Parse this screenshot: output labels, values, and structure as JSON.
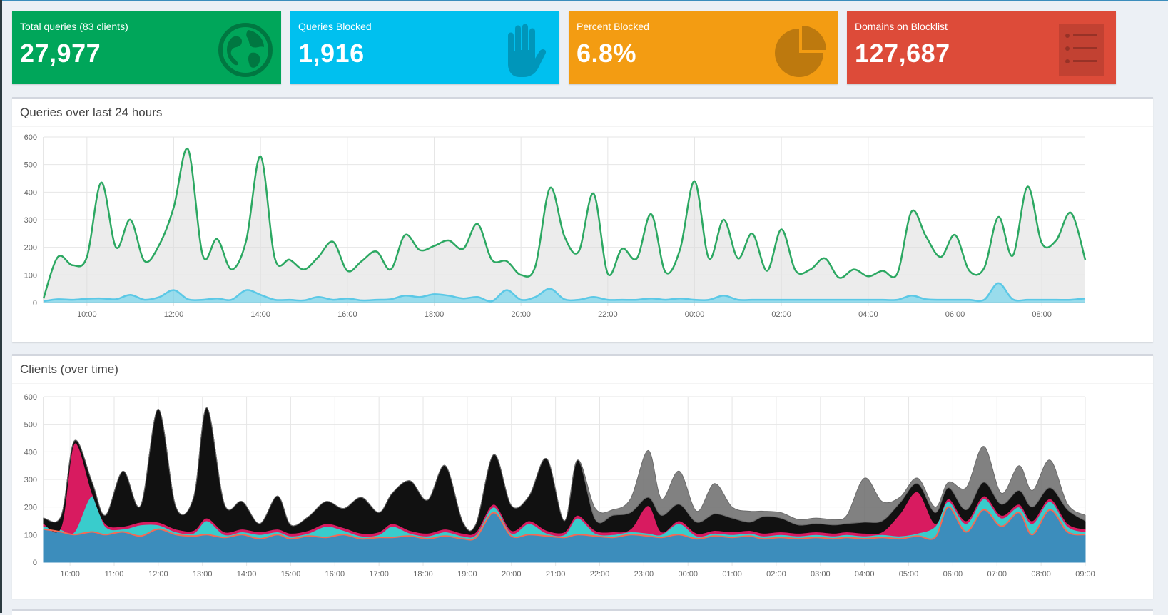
{
  "stats": {
    "total": {
      "label": "Total queries (83 clients)",
      "value": "27,977",
      "color": "#00a65a",
      "icon": "globe-icon"
    },
    "blocked": {
      "label": "Queries Blocked",
      "value": "1,916",
      "color": "#00c0ef",
      "icon": "hand-icon"
    },
    "percent": {
      "label": "Percent Blocked",
      "value": "6.8%",
      "color": "#f39c12",
      "icon": "pie-chart-icon"
    },
    "domains": {
      "label": "Domains on Blocklist",
      "value": "127,687",
      "color": "#dd4b39",
      "icon": "list-icon"
    }
  },
  "queries_panel": {
    "title": "Queries over last 24 hours"
  },
  "clients_panel": {
    "title": "Clients (over time)"
  },
  "chart_data": [
    {
      "type": "area",
      "y_ticks": [
        "0",
        "100",
        "200",
        "300",
        "400",
        "500",
        "600"
      ],
      "x_ticks": [
        "10:00",
        "12:00",
        "14:00",
        "16:00",
        "18:00",
        "20:00",
        "22:00",
        "00:00",
        "02:00",
        "04:00",
        "06:00",
        "08:00"
      ],
      "ylim": [
        0,
        600
      ],
      "grid": true,
      "x": [
        9.0,
        9.33,
        9.67,
        10.0,
        10.33,
        10.67,
        11.0,
        11.33,
        11.67,
        12.0,
        12.33,
        12.67,
        13.0,
        13.33,
        13.67,
        14.0,
        14.33,
        14.67,
        15.0,
        15.33,
        15.67,
        16.0,
        16.33,
        16.67,
        17.0,
        17.33,
        17.67,
        18.0,
        18.33,
        18.67,
        19.0,
        19.33,
        19.67,
        20.0,
        20.33,
        20.67,
        21.0,
        21.33,
        21.67,
        22.0,
        22.33,
        22.67,
        23.0,
        23.33,
        23.67,
        24.0,
        24.33,
        24.67,
        25.0,
        25.33,
        25.67,
        26.0,
        26.33,
        26.67,
        27.0,
        27.33,
        27.67,
        28.0,
        28.33,
        28.67,
        29.0,
        29.33,
        29.67,
        30.0,
        30.33,
        30.67,
        31.0,
        31.33,
        31.67,
        32.0,
        32.33,
        32.67,
        33.0
      ],
      "series": [
        {
          "values": [
            15,
            165,
            135,
            165,
            435,
            200,
            300,
            150,
            210,
            345,
            555,
            170,
            230,
            120,
            225,
            530,
            160,
            155,
            120,
            165,
            220,
            115,
            150,
            185,
            120,
            245,
            190,
            205,
            225,
            195,
            285,
            155,
            150,
            100,
            130,
            415,
            240,
            185,
            395,
            105,
            195,
            160,
            320,
            110,
            195,
            440,
            160,
            300,
            160,
            250,
            115,
            265,
            115,
            120,
            160,
            90,
            120,
            95,
            115,
            105,
            330,
            240,
            165,
            245,
            115,
            125,
            310,
            170,
            420,
            215,
            225,
            325,
            155
          ],
          "color": "#00a65a"
        },
        {
          "values": [
            5,
            12,
            10,
            14,
            15,
            12,
            28,
            10,
            20,
            45,
            12,
            10,
            15,
            10,
            45,
            28,
            10,
            10,
            8,
            20,
            10,
            15,
            8,
            10,
            12,
            25,
            20,
            30,
            25,
            15,
            20,
            5,
            45,
            10,
            20,
            50,
            12,
            10,
            20,
            10,
            10,
            10,
            15,
            10,
            15,
            10,
            10,
            25,
            10,
            10,
            10,
            10,
            10,
            10,
            10,
            10,
            10,
            10,
            10,
            10,
            25,
            12,
            10,
            10,
            10,
            10,
            70,
            12,
            10,
            10,
            10,
            10,
            15
          ],
          "color": "#00c0ef"
        }
      ]
    },
    {
      "type": "area",
      "stacked": true,
      "y_ticks": [
        "0",
        "100",
        "200",
        "300",
        "400",
        "500",
        "600"
      ],
      "x_ticks": [
        "10:00",
        "11:00",
        "12:00",
        "13:00",
        "14:00",
        "15:00",
        "16:00",
        "17:00",
        "18:00",
        "19:00",
        "20:00",
        "21:00",
        "22:00",
        "23:00",
        "00:00",
        "01:00",
        "02:00",
        "03:00",
        "04:00",
        "05:00",
        "06:00",
        "07:00",
        "08:00",
        "09:00"
      ],
      "ylim": [
        0,
        600
      ],
      "grid": true,
      "x": [
        9.4,
        9.8,
        10.1,
        10.5,
        10.8,
        11.2,
        11.6,
        12.0,
        12.4,
        12.8,
        13.1,
        13.5,
        13.9,
        14.3,
        14.7,
        15.0,
        15.4,
        15.8,
        16.2,
        16.6,
        17.0,
        17.3,
        17.7,
        18.1,
        18.5,
        18.9,
        19.2,
        19.6,
        20.0,
        20.4,
        20.8,
        21.2,
        21.5,
        21.9,
        22.3,
        22.7,
        23.1,
        23.4,
        23.8,
        24.2,
        24.6,
        25.0,
        25.4,
        25.7,
        26.1,
        26.5,
        26.9,
        27.3,
        27.6,
        28.0,
        28.4,
        28.8,
        29.2,
        29.6,
        29.9,
        30.3,
        30.7,
        31.1,
        31.5,
        31.8,
        32.2,
        32.6,
        33.0
      ],
      "series": [
        {
          "name": "",
          "values": [
            120,
            110,
            100,
            110,
            100,
            110,
            95,
            120,
            100,
            95,
            100,
            90,
            100,
            85,
            100,
            85,
            95,
            90,
            100,
            85,
            90,
            90,
            95,
            85,
            95,
            85,
            90,
            180,
            95,
            100,
            95,
            90,
            100,
            95,
            90,
            100,
            95,
            90,
            100,
            85,
            95,
            90,
            95,
            85,
            90,
            85,
            90,
            85,
            90,
            85,
            90,
            85,
            95,
            90,
            200,
            110,
            190,
            130,
            180,
            100,
            190,
            110,
            100
          ],
          "color": "#3c8dbc"
        },
        {
          "name": "",
          "values": [
            10,
            8,
            10,
            130,
            30,
            10,
            40,
            15,
            10,
            10,
            50,
            10,
            10,
            15,
            10,
            10,
            10,
            40,
            15,
            10,
            10,
            40,
            10,
            10,
            15,
            10,
            10,
            20,
            10,
            40,
            10,
            10,
            60,
            10,
            10,
            10,
            10,
            10,
            40,
            10,
            10,
            10,
            10,
            10,
            10,
            10,
            10,
            10,
            10,
            10,
            10,
            10,
            10,
            40,
            20,
            30,
            40,
            30,
            20,
            40,
            30,
            20,
            10
          ],
          "color": "#39cccc"
        },
        {
          "name": "",
          "values": [
            10,
            10,
            320,
            10,
            10,
            10,
            10,
            10,
            10,
            10,
            10,
            10,
            10,
            10,
            10,
            10,
            10,
            10,
            10,
            10,
            10,
            10,
            10,
            10,
            10,
            10,
            10,
            10,
            10,
            10,
            10,
            10,
            10,
            10,
            10,
            10,
            100,
            10,
            10,
            10,
            10,
            10,
            10,
            10,
            10,
            10,
            10,
            10,
            10,
            10,
            10,
            80,
            150,
            10,
            10,
            10,
            10,
            10,
            10,
            10,
            10,
            10,
            10
          ],
          "color": "#d81b60"
        },
        {
          "name": "",
          "values": [
            20,
            40,
            10,
            40,
            30,
            200,
            60,
            410,
            80,
            120,
            400,
            100,
            100,
            30,
            120,
            30,
            50,
            80,
            70,
            130,
            70,
            110,
            180,
            120,
            230,
            40,
            30,
            180,
            90,
            90,
            260,
            40,
            200,
            40,
            60,
            60,
            30,
            60,
            60,
            40,
            60,
            50,
            30,
            60,
            50,
            30,
            30,
            30,
            30,
            40,
            40,
            40,
            30,
            40,
            40,
            40,
            50,
            40,
            50,
            50,
            40,
            50,
            30
          ],
          "color": "#111111"
        },
        {
          "name": "",
          "values": [
            0,
            0,
            0,
            0,
            0,
            0,
            0,
            0,
            0,
            0,
            0,
            0,
            0,
            0,
            0,
            0,
            0,
            0,
            0,
            0,
            0,
            0,
            0,
            0,
            0,
            0,
            0,
            0,
            0,
            0,
            0,
            0,
            0,
            40,
            20,
            50,
            170,
            60,
            120,
            40,
            110,
            40,
            40,
            20,
            20,
            20,
            20,
            20,
            30,
            160,
            70,
            20,
            20,
            20,
            20,
            80,
            130,
            40,
            90,
            60,
            100,
            20,
            20
          ],
          "color": "#6b6b6b"
        }
      ]
    }
  ]
}
